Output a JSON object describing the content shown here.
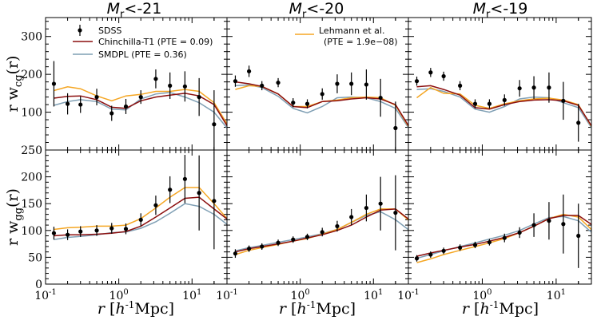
{
  "chart_data": {
    "type": "line",
    "titles": [
      "Mr<-21",
      "Mr<-20",
      "Mr<-19"
    ],
    "title_main": "M",
    "title_sub": "r",
    "title_rest": [
      "<-21",
      "<-20",
      "<-19"
    ],
    "ylabel_top": "r w_cg(r)",
    "ylabel_top_parts": {
      "pre": "r w",
      "sub": "cg",
      "post": "(r)"
    },
    "ylabel_bottom_parts": {
      "pre": "r w",
      "sub": "gg",
      "post": "(r)"
    },
    "xlabel": "r [h^-1 Mpc]",
    "xlabel_parts": {
      "r": "r",
      "open": " [",
      "h": "h",
      "sup": "-1",
      "post": "Mpc]"
    },
    "x_scale": "log",
    "xlim": [
      0.1,
      30
    ],
    "ylim_top": [
      0,
      350
    ],
    "ylim_bottom": [
      0,
      250
    ],
    "x_tick_labels": [
      [
        "10",
        "-1"
      ],
      [
        "10",
        "0"
      ],
      [
        "10",
        "1"
      ]
    ],
    "y_ticks_top": [
      100,
      200,
      300
    ],
    "y_ticks_bottom": [
      0,
      50,
      100,
      150,
      200,
      250
    ],
    "legend_left": [
      {
        "label": "SDSS",
        "type": "errorbar",
        "color": "#000000"
      },
      {
        "label": "Chinchilla-T1 (PTE = 0.09)",
        "color": "#8b0e0e"
      },
      {
        "label": "SMDPL (PTE = 0.36)",
        "color": "#7f9fb4"
      }
    ],
    "legend_right": {
      "label1": "Lehmann et al.",
      "label2": "(PTE = 1.9e−08)",
      "color": "#f5a623"
    },
    "series_colors": {
      "sdss": "#000000",
      "chinchilla": "#8b0e0e",
      "smdpl": "#7f9fb4",
      "lehmann": "#f5a623"
    },
    "x_points": [
      0.13,
      0.2,
      0.3,
      0.5,
      0.8,
      1.25,
      2,
      3.2,
      5,
      8,
      12.5,
      20,
      31
    ],
    "panels": [
      {
        "row": "cg",
        "col": 0,
        "sdss": [
          [
            0.13,
            175,
            60
          ],
          [
            0.2,
            122,
            28
          ],
          [
            0.3,
            120,
            22
          ],
          [
            0.5,
            140,
            22
          ],
          [
            0.8,
            97,
            20
          ],
          [
            1.25,
            115,
            20
          ],
          [
            2,
            140,
            18
          ],
          [
            3.2,
            188,
            25
          ],
          [
            5,
            170,
            35
          ],
          [
            8,
            168,
            40
          ],
          [
            12.5,
            140,
            50
          ],
          [
            20,
            68,
            90
          ]
        ],
        "chinchilla": [
          137,
          142,
          143,
          133,
          113,
          110,
          130,
          140,
          145,
          150,
          143,
          120,
          60
        ],
        "smdpl": [
          118,
          128,
          133,
          128,
          108,
          106,
          135,
          148,
          152,
          140,
          125,
          100,
          55
        ],
        "lehmann": [
          157,
          167,
          162,
          143,
          130,
          143,
          147,
          155,
          155,
          160,
          155,
          125,
          65
        ]
      },
      {
        "row": "cg",
        "col": 1,
        "sdss": [
          [
            0.13,
            182,
            15
          ],
          [
            0.2,
            208,
            15
          ],
          [
            0.3,
            170,
            12
          ],
          [
            0.5,
            178,
            12
          ],
          [
            0.8,
            125,
            12
          ],
          [
            1.25,
            122,
            12
          ],
          [
            2,
            148,
            15
          ],
          [
            3.2,
            175,
            25
          ],
          [
            5,
            175,
            30
          ],
          [
            8,
            173,
            40
          ],
          [
            12.5,
            138,
            50
          ],
          [
            20,
            58,
            70
          ]
        ],
        "chinchilla": [
          180,
          175,
          168,
          148,
          115,
          112,
          128,
          130,
          135,
          138,
          135,
          120,
          60
        ],
        "smdpl": [
          170,
          172,
          165,
          142,
          110,
          98,
          115,
          138,
          140,
          138,
          128,
          110,
          55
        ],
        "lehmann": [
          160,
          170,
          168,
          148,
          115,
          115,
          128,
          132,
          138,
          140,
          138,
          118,
          58
        ]
      },
      {
        "row": "cg",
        "col": 2,
        "sdss": [
          [
            0.13,
            182,
            12
          ],
          [
            0.2,
            205,
            12
          ],
          [
            0.3,
            195,
            12
          ],
          [
            0.5,
            170,
            12
          ],
          [
            0.8,
            122,
            12
          ],
          [
            1.25,
            122,
            12
          ],
          [
            2,
            132,
            15
          ],
          [
            3.2,
            163,
            22
          ],
          [
            5,
            165,
            30
          ],
          [
            8,
            165,
            40
          ],
          [
            12.5,
            130,
            50
          ],
          [
            20,
            72,
            50
          ]
        ],
        "chinchilla": [
          167,
          170,
          160,
          145,
          112,
          108,
          120,
          128,
          132,
          133,
          130,
          118,
          60
        ],
        "smdpl": [
          160,
          162,
          155,
          140,
          108,
          100,
          115,
          135,
          140,
          138,
          125,
          112,
          55
        ],
        "lehmann": [
          138,
          165,
          150,
          148,
          118,
          110,
          122,
          130,
          135,
          137,
          132,
          120,
          58
        ]
      },
      {
        "row": "gg",
        "col": 0,
        "sdss": [
          [
            0.13,
            95,
            12
          ],
          [
            0.2,
            92,
            10
          ],
          [
            0.3,
            98,
            10
          ],
          [
            0.5,
            100,
            10
          ],
          [
            0.8,
            104,
            10
          ],
          [
            1.25,
            103,
            10
          ],
          [
            2,
            120,
            12
          ],
          [
            3.2,
            147,
            18
          ],
          [
            5,
            176,
            25
          ],
          [
            8,
            196,
            45
          ],
          [
            12.5,
            170,
            70
          ],
          [
            20,
            155,
            90
          ]
        ],
        "chinchilla": [
          90,
          92,
          92,
          93,
          95,
          98,
          108,
          125,
          142,
          160,
          162,
          140,
          120
        ],
        "smdpl": [
          83,
          87,
          89,
          92,
          96,
          97,
          104,
          116,
          132,
          150,
          145,
          130,
          110
        ],
        "lehmann": [
          102,
          105,
          106,
          108,
          108,
          110,
          122,
          142,
          162,
          180,
          180,
          150,
          120
        ]
      },
      {
        "row": "gg",
        "col": 1,
        "sdss": [
          [
            0.13,
            57,
            8
          ],
          [
            0.2,
            66,
            6
          ],
          [
            0.3,
            70,
            6
          ],
          [
            0.5,
            77,
            6
          ],
          [
            0.8,
            83,
            6
          ],
          [
            1.25,
            88,
            6
          ],
          [
            2,
            97,
            8
          ],
          [
            3.2,
            108,
            10
          ],
          [
            5,
            125,
            15
          ],
          [
            8,
            142,
            25
          ],
          [
            12.5,
            150,
            50
          ],
          [
            20,
            133,
            70
          ]
        ],
        "chinchilla": [
          60,
          66,
          70,
          75,
          80,
          86,
          92,
          100,
          110,
          125,
          138,
          140,
          120
        ],
        "smdpl": [
          62,
          68,
          72,
          78,
          83,
          88,
          94,
          102,
          115,
          128,
          135,
          120,
          100
        ],
        "lehmann": [
          55,
          63,
          68,
          74,
          80,
          85,
          93,
          102,
          115,
          130,
          140,
          140,
          118
        ]
      },
      {
        "row": "gg",
        "col": 2,
        "sdss": [
          [
            0.13,
            48,
            6
          ],
          [
            0.2,
            55,
            6
          ],
          [
            0.3,
            62,
            6
          ],
          [
            0.5,
            68,
            6
          ],
          [
            0.8,
            73,
            6
          ],
          [
            1.25,
            78,
            6
          ],
          [
            2,
            86,
            8
          ],
          [
            3.2,
            96,
            10
          ],
          [
            5,
            110,
            22
          ],
          [
            8,
            118,
            35
          ],
          [
            12.5,
            112,
            55
          ],
          [
            20,
            90,
            60
          ]
        ],
        "chinchilla": [
          52,
          58,
          63,
          69,
          74,
          80,
          87,
          96,
          108,
          122,
          128,
          128,
          110
        ],
        "smdpl": [
          48,
          55,
          62,
          70,
          77,
          84,
          91,
          100,
          112,
          124,
          126,
          118,
          95
        ],
        "lehmann": [
          40,
          47,
          55,
          63,
          70,
          77,
          85,
          96,
          108,
          122,
          130,
          125,
          100
        ]
      }
    ]
  }
}
